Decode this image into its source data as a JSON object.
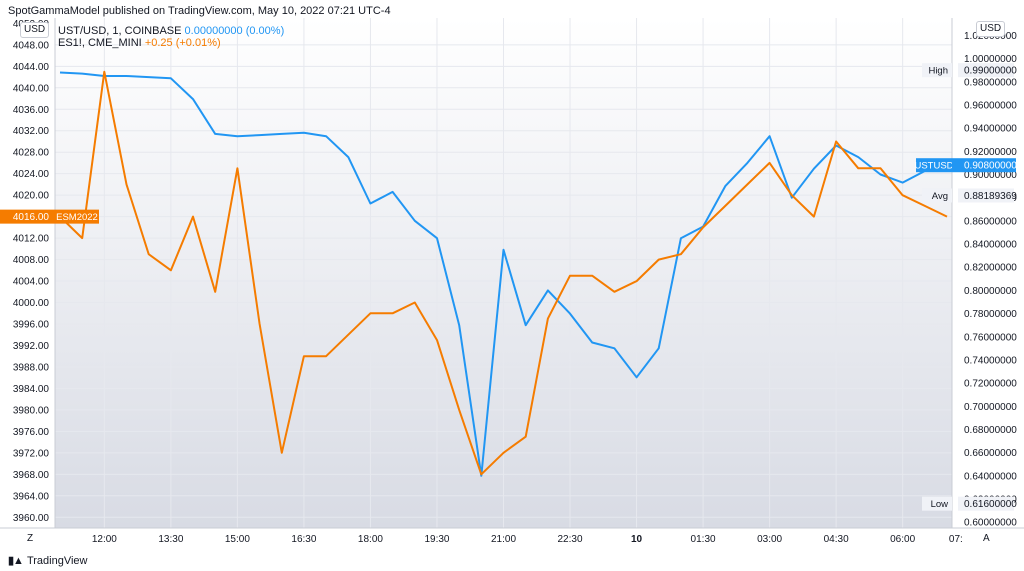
{
  "header": {
    "publisher_line": "SpotGammaModel published on TradingView.com, May 10, 2022 07:21 UTC-4"
  },
  "legend": {
    "ust": {
      "symbol": "UST/USD, 1, COINBASE",
      "value": "0.00000000 (0.00%)",
      "color": "#2196f3"
    },
    "es": {
      "symbol": "ES1!, CME_MINI",
      "value": "+0.25 (+0.01%)",
      "color": "#f57c00"
    }
  },
  "unit_left": "USD",
  "unit_right": "USD",
  "footer": {
    "brand": "TradingView"
  },
  "corner_left": "Z",
  "corner_right": "A",
  "chart_data": {
    "type": "line",
    "x": [
      "11:00",
      "11:30",
      "12:00",
      "12:30",
      "13:00",
      "13:30",
      "14:00",
      "14:30",
      "15:00",
      "15:30",
      "16:00",
      "16:30",
      "17:00",
      "17:30",
      "18:00",
      "18:30",
      "19:00",
      "19:30",
      "20:00",
      "20:30",
      "21:00",
      "21:30",
      "22:00",
      "22:30",
      "23:00",
      "23:30",
      "00:00",
      "00:30",
      "01:00",
      "01:30",
      "02:00",
      "02:30",
      "03:00",
      "03:30",
      "04:00",
      "04:30",
      "05:00",
      "05:30",
      "06:00",
      "06:30",
      "07:00"
    ],
    "x_ticks": [
      "12:00",
      "13:30",
      "15:00",
      "16:30",
      "18:00",
      "19:30",
      "21:00",
      "22:30",
      "10",
      "01:30",
      "03:00",
      "04:30",
      "06:00",
      "07:"
    ],
    "x_tick_positions": [
      2,
      5,
      8,
      11,
      14,
      17,
      20,
      23,
      26,
      29,
      32,
      35,
      38,
      40.4
    ],
    "series": [
      {
        "name": "UST/USD",
        "axis": "right",
        "color": "#2196f3",
        "values": [
          0.988,
          0.987,
          0.985,
          0.985,
          0.984,
          0.983,
          0.965,
          0.935,
          0.933,
          0.934,
          0.935,
          0.936,
          0.933,
          0.915,
          0.875,
          0.885,
          0.86,
          0.845,
          0.77,
          0.64,
          0.835,
          0.77,
          0.8,
          0.78,
          0.755,
          0.75,
          0.725,
          0.75,
          0.845,
          0.855,
          0.89,
          0.91,
          0.933,
          0.88,
          0.905,
          0.925,
          0.915,
          0.9,
          0.893,
          0.903,
          0.908
        ]
      },
      {
        "name": "ES1!",
        "axis": "left",
        "color": "#f57c00",
        "values": [
          4016,
          4012,
          4043,
          4022,
          4009,
          4006,
          4016,
          4002,
          4025,
          3996,
          3972,
          3990,
          3990,
          3994,
          3998,
          3998,
          4000,
          3993,
          3980,
          3968,
          3972,
          3975,
          3997,
          4005,
          4005,
          4002,
          4004,
          4008,
          4009,
          4014,
          4018,
          4022,
          4026,
          4020,
          4016,
          4030,
          4025,
          4025,
          4020,
          4018,
          4016
        ]
      }
    ],
    "left_axis": {
      "range": [
        3958,
        4053
      ],
      "ticks": [
        3960,
        3964,
        3968,
        3972,
        3976,
        3980,
        3984,
        3988,
        3992,
        3996,
        4000,
        4004,
        4008,
        4012,
        4016,
        4020,
        4024,
        4028,
        4032,
        4036,
        4040,
        4044,
        4048
      ],
      "top_label": "4052.00"
    },
    "right_axis": {
      "range": [
        0.595,
        1.035
      ],
      "ticks": [
        0.6,
        0.62,
        0.64,
        0.66,
        0.68,
        0.7,
        0.72,
        0.74,
        0.76,
        0.78,
        0.8,
        0.82,
        0.84,
        0.86,
        0.88,
        0.9,
        0.92,
        0.94,
        0.96,
        0.98,
        1.0,
        1.02
      ],
      "decimals": 8
    },
    "right_labels": [
      {
        "name": "High",
        "value": "0.99000000"
      },
      {
        "name": "UST/USD",
        "tag": "USTUSD",
        "value": "0.90800000"
      },
      {
        "name": "Avg",
        "value": "0.88189369"
      },
      {
        "name": "Low",
        "value": "0.61600000"
      }
    ],
    "left_last_label": {
      "tag": "ESM2022",
      "value": "4016.00"
    },
    "grid": true,
    "background_gradient": [
      "#ffffff",
      "#d8dbe4"
    ]
  }
}
